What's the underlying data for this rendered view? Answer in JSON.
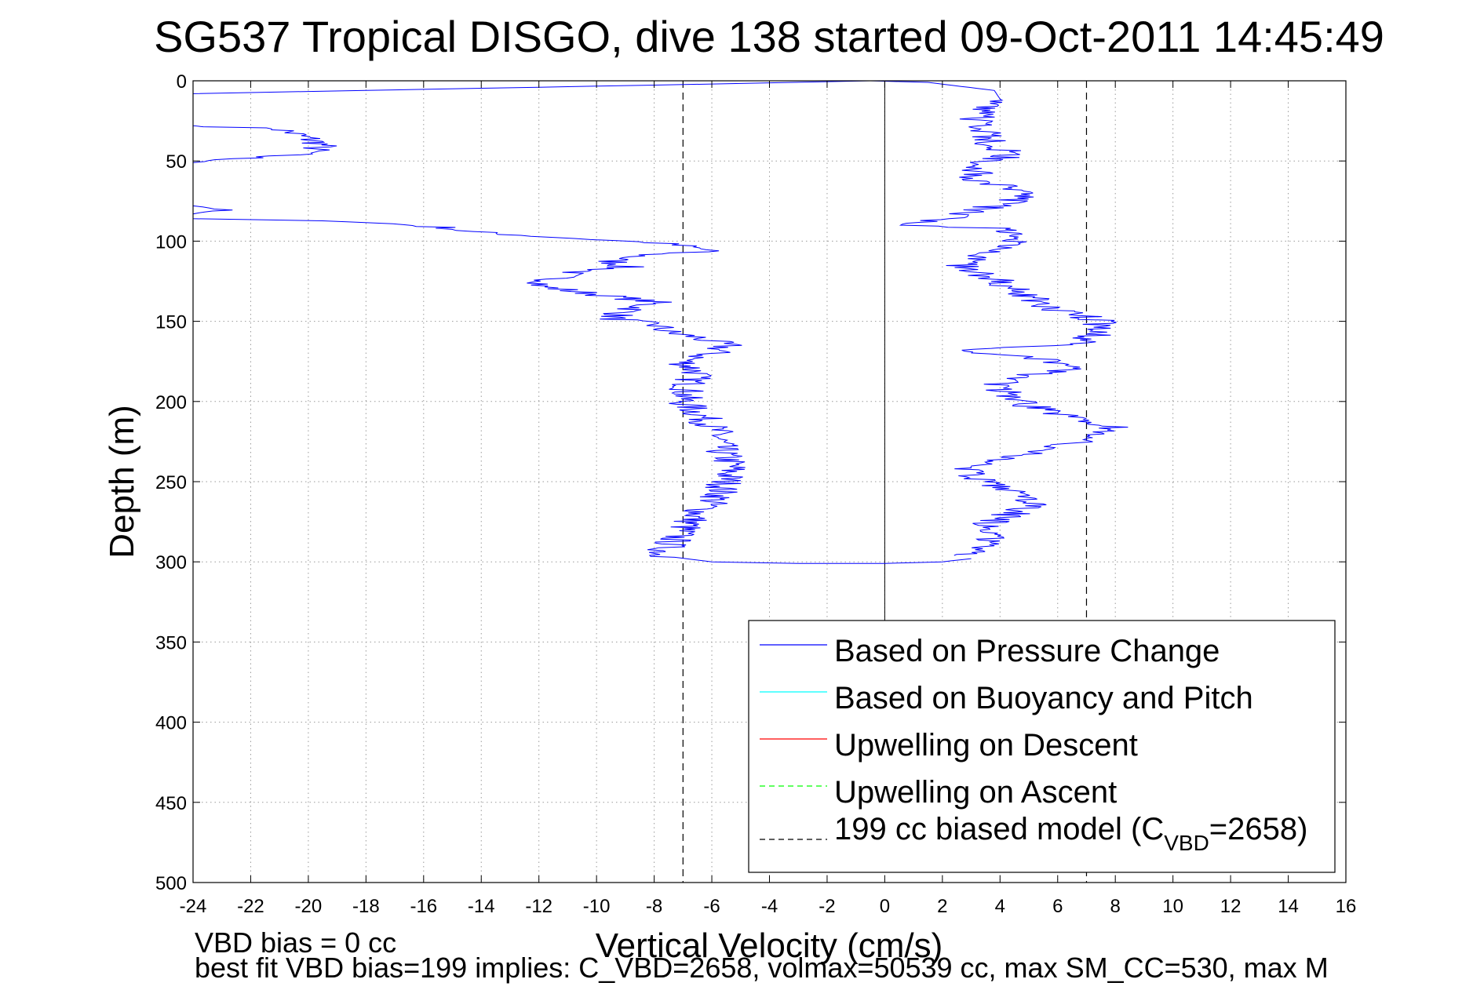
{
  "chart_data": {
    "type": "line",
    "title": "SG537 Tropical DISGO, dive 138 started 09-Oct-2011 14:45:49",
    "xlabel": "Vertical Velocity (cm/s)",
    "ylabel": "Depth (m)",
    "xlim": [
      -24,
      16
    ],
    "ylim": [
      0,
      500
    ],
    "y_reversed": true,
    "grid": true,
    "x_ticks": [
      -24,
      -22,
      -20,
      -18,
      -16,
      -14,
      -12,
      -10,
      -8,
      -6,
      -4,
      -2,
      0,
      2,
      4,
      6,
      8,
      10,
      12,
      14,
      16
    ],
    "y_ticks": [
      0,
      50,
      100,
      150,
      200,
      250,
      300,
      350,
      400,
      450,
      500
    ],
    "legend_position": "lower-right",
    "legend": [
      {
        "label": "Based on Pressure Change",
        "color": "#0000ff",
        "style": "solid"
      },
      {
        "label": "Based on Buoyancy and Pitch",
        "color": "#00ffff",
        "style": "solid"
      },
      {
        "label": "Upwelling on Descent",
        "color": "#ff0000",
        "style": "solid"
      },
      {
        "label": "Upwelling on Ascent",
        "color": "#00ff00",
        "style": "dashed"
      },
      {
        "label_main": "199 cc biased model (C",
        "label_sub": "VBD",
        "label_tail": "=2658)",
        "color": "#000000",
        "style": "dashed"
      }
    ],
    "series": [
      {
        "name": "Based on Pressure Change",
        "color": "#0000ff",
        "descent": [
          [
            -0.5,
            0
          ],
          [
            -6,
            2
          ],
          [
            -12,
            4
          ],
          [
            -18,
            6
          ],
          [
            -24,
            8
          ],
          [
            -24,
            10
          ],
          [
            -24,
            28
          ],
          [
            -21,
            30
          ],
          [
            -20,
            36
          ],
          [
            -19.5,
            40
          ],
          [
            -20,
            45
          ],
          [
            -22,
            48
          ],
          [
            -24,
            51
          ],
          [
            -24,
            78
          ],
          [
            -23,
            80
          ],
          [
            -24,
            83
          ],
          [
            -24,
            86
          ],
          [
            -18,
            88
          ],
          [
            -15,
            92
          ],
          [
            -14.5,
            94
          ],
          [
            -12,
            97
          ],
          [
            -10,
            99
          ],
          [
            -8,
            101
          ],
          [
            -7,
            103
          ],
          [
            -6,
            106
          ],
          [
            -8,
            108
          ],
          [
            -9.5,
            112
          ],
          [
            -9,
            116
          ],
          [
            -11,
            120
          ],
          [
            -12,
            128
          ],
          [
            -10.5,
            132
          ],
          [
            -8,
            138
          ],
          [
            -9,
            144
          ],
          [
            -9.5,
            148
          ],
          [
            -8,
            152
          ],
          [
            -7.5,
            157
          ],
          [
            -6.5,
            160
          ],
          [
            -5.5,
            165
          ],
          [
            -6,
            170
          ],
          [
            -7,
            175
          ],
          [
            -6.5,
            182
          ],
          [
            -6.8,
            190
          ],
          [
            -7,
            200
          ],
          [
            -6.3,
            210
          ],
          [
            -5.8,
            220
          ],
          [
            -5.7,
            230
          ],
          [
            -5.3,
            240
          ],
          [
            -5.5,
            250
          ],
          [
            -5.8,
            260
          ],
          [
            -6.5,
            270
          ],
          [
            -7,
            280
          ],
          [
            -7.5,
            290
          ],
          [
            -7.8,
            296
          ],
          [
            -6,
            300
          ],
          [
            -3,
            301
          ],
          [
            0,
            301
          ],
          [
            2,
            300
          ],
          [
            3,
            298
          ]
        ],
        "ascent": [
          [
            3,
            296
          ],
          [
            3.2,
            290
          ],
          [
            4,
            284
          ],
          [
            3.7,
            276
          ],
          [
            4.4,
            270
          ],
          [
            5.2,
            265
          ],
          [
            4.5,
            258
          ],
          [
            3.5,
            250
          ],
          [
            2.8,
            242
          ],
          [
            4,
            236
          ],
          [
            5.5,
            230
          ],
          [
            7.5,
            222
          ],
          [
            8,
            216
          ],
          [
            6.5,
            210
          ],
          [
            5.2,
            204
          ],
          [
            4.2,
            196
          ],
          [
            4,
            188
          ],
          [
            5.5,
            182
          ],
          [
            6.8,
            178
          ],
          [
            5,
            172
          ],
          [
            2.5,
            168
          ],
          [
            6.5,
            164
          ],
          [
            7.5,
            158
          ],
          [
            7.5,
            150
          ],
          [
            5.5,
            140
          ],
          [
            4.4,
            130
          ],
          [
            3.6,
            122
          ],
          [
            2.6,
            114
          ],
          [
            4.1,
            106
          ],
          [
            4.6,
            98
          ],
          [
            3.8,
            92
          ],
          [
            0,
            90
          ],
          [
            2.3,
            86
          ],
          [
            3.8,
            78
          ],
          [
            5.4,
            70
          ],
          [
            3.2,
            62
          ],
          [
            3.1,
            54
          ],
          [
            4.4,
            46
          ],
          [
            3.6,
            38
          ],
          [
            3.4,
            30
          ],
          [
            3.2,
            22
          ],
          [
            4.1,
            14
          ],
          [
            3.8,
            6
          ],
          [
            1.5,
            1
          ],
          [
            -0.5,
            0
          ]
        ]
      },
      {
        "name": "199 cc biased model",
        "color": "#000000",
        "style": "dashed",
        "x_values": [
          -7,
          7
        ],
        "depth_range": [
          0,
          500
        ]
      }
    ]
  },
  "footnotes": {
    "line1": "VBD bias = 0 cc",
    "line2": "best fit VBD bias=199 implies: C_VBD=2658, volmax=50539 cc, max SM_CC=530, max M"
  }
}
